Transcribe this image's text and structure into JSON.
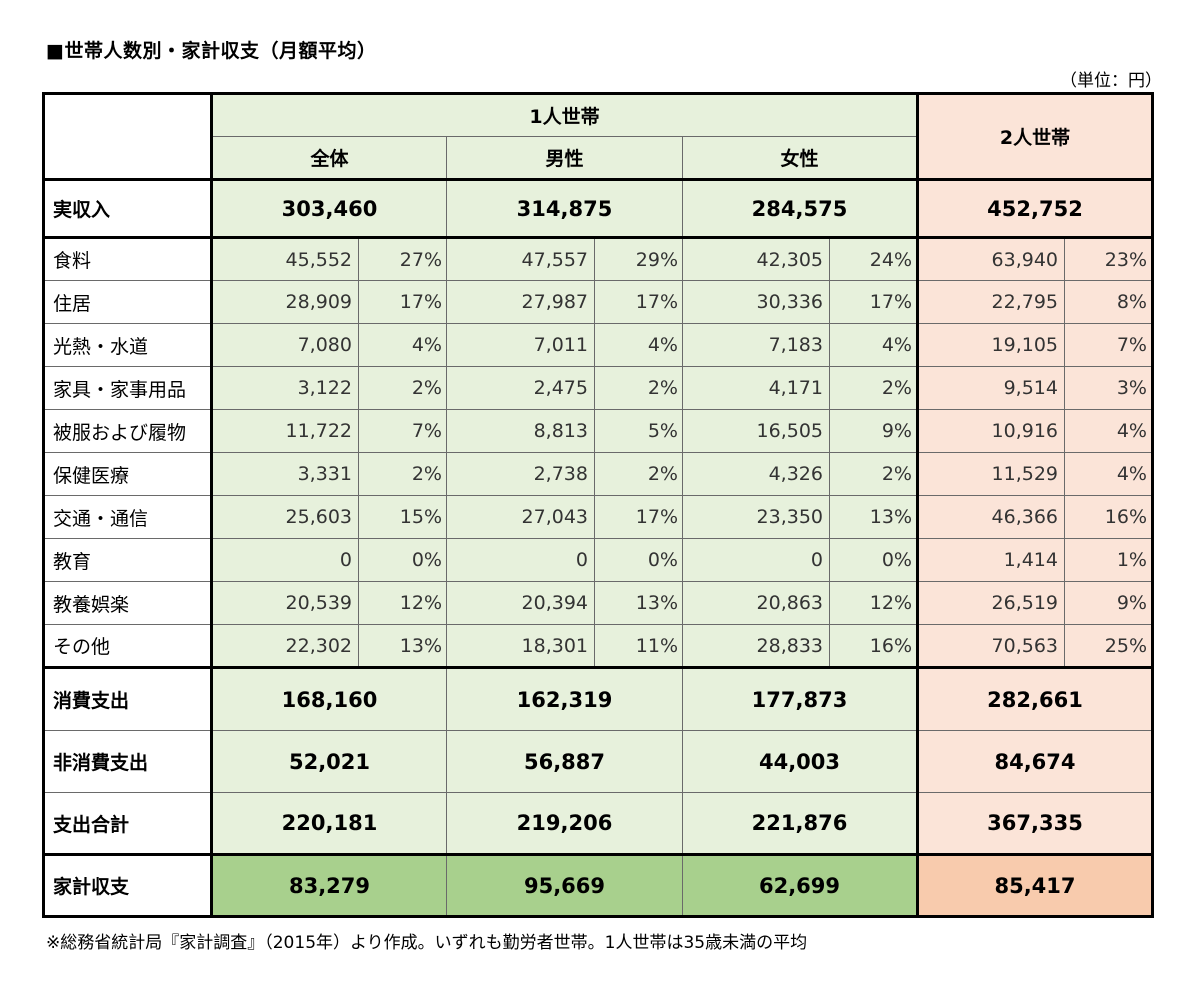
{
  "title": "■世帯人数別・家計収支（月額平均）",
  "unit": "（単位：円）",
  "footnote": "※総務省統計局『家計調査』（2015年）より作成。いずれも勤労者世帯。1人世帯は35歳未満の平均",
  "colors": {
    "light_green": "#e7f1dc",
    "dark_green": "#a8d08d",
    "light_pink": "#fbe4d8",
    "dark_pink": "#f8cbad"
  },
  "chart_data": {
    "type": "table",
    "header": {
      "group_single": "1人世帯",
      "group_two": "2人世帯",
      "sub": [
        "全体",
        "男性",
        "女性"
      ]
    },
    "income": {
      "label": "実収入",
      "values": [
        "303,460",
        "314,875",
        "284,575",
        "452,752"
      ]
    },
    "expenses": [
      {
        "label": "食料",
        "values": [
          "45,552",
          "47,557",
          "42,305",
          "63,940"
        ],
        "pcts": [
          "27%",
          "29%",
          "24%",
          "23%"
        ]
      },
      {
        "label": "住居",
        "values": [
          "28,909",
          "27,987",
          "30,336",
          "22,795"
        ],
        "pcts": [
          "17%",
          "17%",
          "17%",
          "8%"
        ]
      },
      {
        "label": "光熱・水道",
        "values": [
          "7,080",
          "7,011",
          "7,183",
          "19,105"
        ],
        "pcts": [
          "4%",
          "4%",
          "4%",
          "7%"
        ]
      },
      {
        "label": "家具・家事用品",
        "values": [
          "3,122",
          "2,475",
          "4,171",
          "9,514"
        ],
        "pcts": [
          "2%",
          "2%",
          "2%",
          "3%"
        ]
      },
      {
        "label": "被服および履物",
        "values": [
          "11,722",
          "8,813",
          "16,505",
          "10,916"
        ],
        "pcts": [
          "7%",
          "5%",
          "9%",
          "4%"
        ]
      },
      {
        "label": "保健医療",
        "values": [
          "3,331",
          "2,738",
          "4,326",
          "11,529"
        ],
        "pcts": [
          "2%",
          "2%",
          "2%",
          "4%"
        ]
      },
      {
        "label": "交通・通信",
        "values": [
          "25,603",
          "27,043",
          "23,350",
          "46,366"
        ],
        "pcts": [
          "15%",
          "17%",
          "13%",
          "16%"
        ]
      },
      {
        "label": "教育",
        "values": [
          "0",
          "0",
          "0",
          "1,414"
        ],
        "pcts": [
          "0%",
          "0%",
          "0%",
          "1%"
        ]
      },
      {
        "label": "教養娯楽",
        "values": [
          "20,539",
          "20,394",
          "20,863",
          "26,519"
        ],
        "pcts": [
          "12%",
          "13%",
          "12%",
          "9%"
        ]
      },
      {
        "label": "その他",
        "values": [
          "22,302",
          "18,301",
          "28,833",
          "70,563"
        ],
        "pcts": [
          "13%",
          "11%",
          "16%",
          "25%"
        ]
      }
    ],
    "totals": [
      {
        "label": "消費支出",
        "values": [
          "168,160",
          "162,319",
          "177,873",
          "282,661"
        ]
      },
      {
        "label": "非消費支出",
        "values": [
          "52,021",
          "56,887",
          "44,003",
          "84,674"
        ]
      },
      {
        "label": "支出合計",
        "values": [
          "220,181",
          "219,206",
          "221,876",
          "367,335"
        ]
      }
    ],
    "balance": {
      "label": "家計収支",
      "values": [
        "83,279",
        "95,669",
        "62,699",
        "85,417"
      ]
    }
  }
}
